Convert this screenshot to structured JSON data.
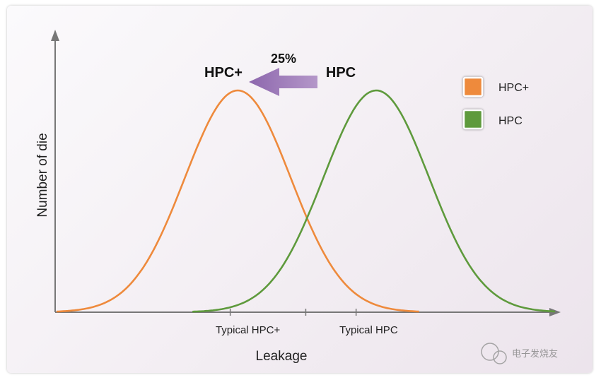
{
  "chart_data": {
    "type": "line",
    "xlabel": "Leakage",
    "ylabel": "Number of die",
    "xticks": [
      {
        "label": "Typical HPC+",
        "x": 0.38
      },
      {
        "label": "Typical HPC",
        "x": 0.62
      }
    ],
    "series": [
      {
        "name": "HPC+",
        "color": "#ee8a3c",
        "mean": 0.36,
        "sd": 0.105,
        "peak": 1.0,
        "x_start": 0.0,
        "x_end": 0.72
      },
      {
        "name": "HPC",
        "color": "#5e9a3c",
        "mean": 0.635,
        "sd": 0.105,
        "peak": 1.0,
        "x_start": 0.27,
        "x_end": 0.99
      }
    ],
    "annotations": {
      "hpcplus_peak_label": "HPC+",
      "hpc_peak_label": "HPC",
      "shift_label": "25%",
      "arrow_color": "#9a75b5"
    },
    "legend": {
      "placement": "top-right",
      "items": [
        {
          "label": "HPC+",
          "color": "#ee8a3c"
        },
        {
          "label": "HPC",
          "color": "#5e9a3c"
        }
      ]
    }
  },
  "watermark": "电子发烧友"
}
